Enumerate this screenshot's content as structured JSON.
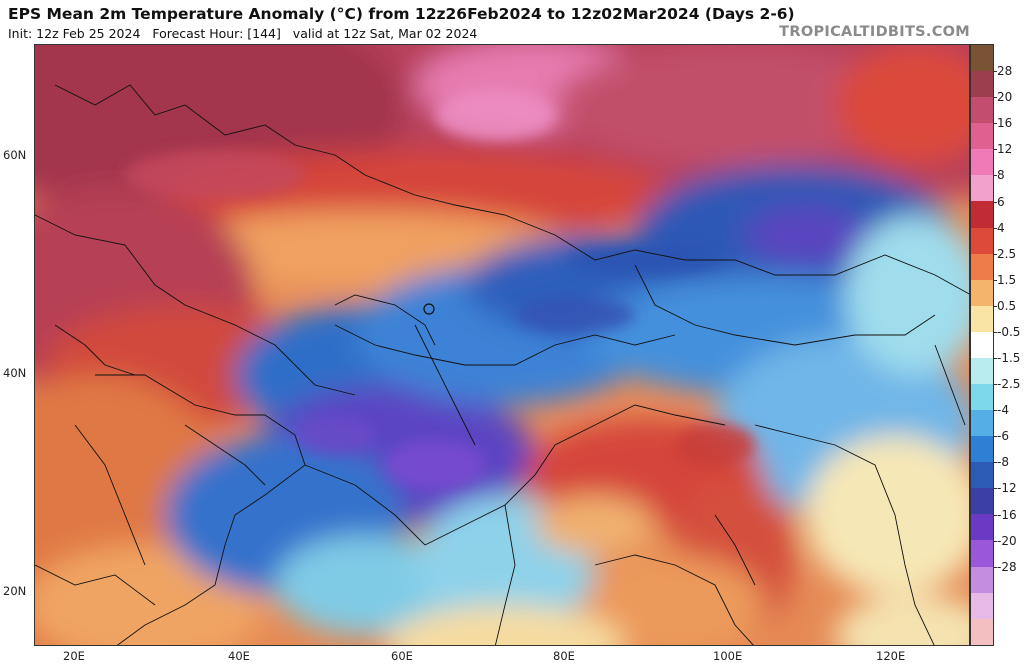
{
  "header": {
    "title": "EPS Mean 2m Temperature Anomaly (°C) from 12z26Feb2024 to 12z02Mar2024 (Days 2-6)",
    "subtitle": "Init: 12z Feb 25 2024   Forecast Hour: [144]   valid at 12z Sat, Mar 02 2024",
    "brand": "TROPICALTIDBITS.COM"
  },
  "map": {
    "lat_labels": [
      "60N",
      "40N",
      "20N"
    ],
    "lon_labels": [
      "20E",
      "40E",
      "60E",
      "80E",
      "100E",
      "120E"
    ]
  },
  "colorbar": {
    "labels": [
      "28",
      "20",
      "16",
      "12",
      "8",
      "6",
      "4",
      "2.5",
      "1.5",
      "0.5",
      "-0.5",
      "-1.5",
      "-2.5",
      "-4",
      "-6",
      "-8",
      "-12",
      "-16",
      "-20",
      "-28"
    ],
    "colors": [
      "#7a5234",
      "#9c3e4e",
      "#c24d6f",
      "#e0608f",
      "#f07ab8",
      "#f2a1cc",
      "#c02b36",
      "#dd4a3a",
      "#ee7c4a",
      "#f5b46b",
      "#f9e4a6",
      "#ffffff",
      "#b8ecef",
      "#7ed8ec",
      "#55aee6",
      "#2f7fd4",
      "#2c5bb6",
      "#3c40a6",
      "#6a3ac4",
      "#9a57d9",
      "#c58ddf",
      "#e7b9e6",
      "#f3bfc0"
    ]
  },
  "colors": {
    "warm_strong": "#a83550",
    "warm": "#d9503b",
    "warm_light": "#f3a46a",
    "neutral": "#f8f1d2",
    "cool_light": "#8fd1ea",
    "cool": "#3a82d6",
    "cold": "#2d4fb0",
    "very_cold": "#6b45c8"
  }
}
